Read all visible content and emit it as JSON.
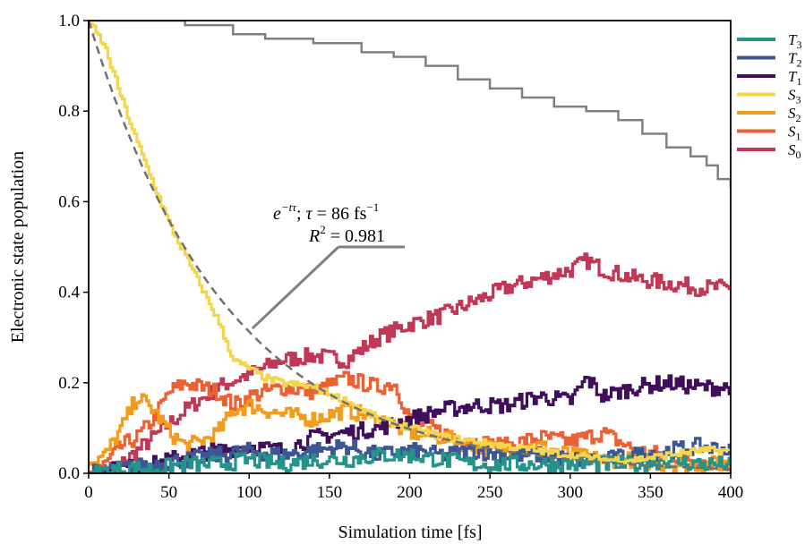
{
  "chart_data": {
    "type": "line",
    "xlabel": "Simulation time [fs]",
    "ylabel": "Electronic state population",
    "xlim": [
      0,
      400
    ],
    "ylim": [
      0,
      1.0
    ],
    "xticks": [
      "0",
      "50",
      "100",
      "150",
      "200",
      "250",
      "300",
      "350",
      "400"
    ],
    "yticks": [
      "0.0",
      "0.2",
      "0.4",
      "0.6",
      "0.8",
      "1.0"
    ],
    "grid": false,
    "legend_position": "right, outside",
    "legend": [
      {
        "label": "T",
        "sub": "3",
        "color": "#26938a"
      },
      {
        "label": "T",
        "sub": "2",
        "color": "#3b5693"
      },
      {
        "label": "T",
        "sub": "1",
        "color": "#3f0f5c"
      },
      {
        "label": "S",
        "sub": "3",
        "color": "#f3d54e"
      },
      {
        "label": "S",
        "sub": "2",
        "color": "#f39b1c"
      },
      {
        "label": "S",
        "sub": "1",
        "color": "#ea6233"
      },
      {
        "label": "S",
        "sub": "0",
        "color": "#c23656"
      }
    ],
    "annotation": {
      "line1": "e^{-tτ}; τ = 86 fs^{-1}",
      "line2": "R² = 0.981",
      "arrow_to": [
        102,
        0.32
      ]
    },
    "series": [
      {
        "name": "S0",
        "color": "#c23656",
        "x": [
          0,
          20,
          40,
          60,
          80,
          100,
          120,
          140,
          160,
          180,
          200,
          220,
          240,
          260,
          280,
          300,
          310,
          320,
          340,
          360,
          380,
          400
        ],
        "y": [
          0.0,
          0.02,
          0.08,
          0.14,
          0.19,
          0.22,
          0.25,
          0.26,
          0.25,
          0.3,
          0.33,
          0.35,
          0.38,
          0.41,
          0.43,
          0.45,
          0.47,
          0.45,
          0.43,
          0.42,
          0.41,
          0.41
        ]
      },
      {
        "name": "S1",
        "color": "#ea6233",
        "x": [
          0,
          10,
          20,
          30,
          40,
          50,
          60,
          70,
          80,
          90,
          100,
          120,
          140,
          160,
          180,
          190,
          200,
          220,
          240,
          260,
          280,
          300,
          320,
          340,
          360,
          380,
          400
        ],
        "y": [
          0.0,
          0.02,
          0.06,
          0.08,
          0.12,
          0.18,
          0.2,
          0.19,
          0.18,
          0.15,
          0.17,
          0.19,
          0.18,
          0.21,
          0.19,
          0.2,
          0.12,
          0.09,
          0.07,
          0.06,
          0.08,
          0.07,
          0.09,
          0.05,
          0.04,
          0.03,
          0.02
        ]
      },
      {
        "name": "S2",
        "color": "#f39b1c",
        "x": [
          0,
          10,
          20,
          30,
          40,
          50,
          60,
          70,
          80,
          90,
          100,
          120,
          140,
          160,
          180,
          200,
          220,
          240,
          260,
          280,
          300,
          320,
          340,
          360,
          380,
          400
        ],
        "y": [
          0.02,
          0.04,
          0.1,
          0.17,
          0.14,
          0.09,
          0.06,
          0.07,
          0.09,
          0.14,
          0.15,
          0.13,
          0.12,
          0.14,
          0.12,
          0.09,
          0.08,
          0.06,
          0.05,
          0.06,
          0.04,
          0.03,
          0.03,
          0.02,
          0.02,
          0.02
        ]
      },
      {
        "name": "S3",
        "color": "#f3d54e",
        "x": [
          0,
          10,
          20,
          30,
          40,
          50,
          60,
          70,
          80,
          90,
          100,
          110,
          120,
          140,
          160,
          180,
          200,
          220,
          240,
          260,
          280,
          300,
          320,
          340,
          360,
          380,
          400
        ],
        "y": [
          1.0,
          0.94,
          0.83,
          0.73,
          0.64,
          0.55,
          0.48,
          0.41,
          0.34,
          0.25,
          0.23,
          0.21,
          0.2,
          0.19,
          0.16,
          0.12,
          0.1,
          0.08,
          0.07,
          0.06,
          0.05,
          0.04,
          0.03,
          0.03,
          0.04,
          0.05,
          0.05
        ]
      },
      {
        "name": "T1",
        "color": "#3f0f5c",
        "x": [
          0,
          20,
          40,
          60,
          80,
          100,
          120,
          140,
          160,
          180,
          200,
          220,
          240,
          260,
          280,
          300,
          310,
          320,
          340,
          360,
          380,
          400
        ],
        "y": [
          0.0,
          0.01,
          0.02,
          0.04,
          0.05,
          0.06,
          0.05,
          0.08,
          0.09,
          0.1,
          0.12,
          0.14,
          0.15,
          0.15,
          0.17,
          0.16,
          0.21,
          0.17,
          0.19,
          0.2,
          0.19,
          0.19
        ]
      },
      {
        "name": "T2",
        "color": "#3b5693",
        "x": [
          0,
          20,
          40,
          60,
          80,
          100,
          120,
          140,
          160,
          180,
          200,
          220,
          240,
          260,
          280,
          300,
          320,
          340,
          360,
          380,
          400
        ],
        "y": [
          0.0,
          0.01,
          0.02,
          0.03,
          0.04,
          0.05,
          0.04,
          0.05,
          0.06,
          0.04,
          0.05,
          0.04,
          0.05,
          0.04,
          0.04,
          0.03,
          0.03,
          0.04,
          0.05,
          0.06,
          0.05
        ]
      },
      {
        "name": "T3",
        "color": "#26938a",
        "x": [
          0,
          20,
          40,
          60,
          80,
          100,
          120,
          140,
          160,
          180,
          200,
          220,
          240,
          260,
          280,
          300,
          320,
          340,
          360,
          380,
          400
        ],
        "y": [
          0.0,
          0.01,
          0.01,
          0.02,
          0.02,
          0.03,
          0.02,
          0.03,
          0.03,
          0.04,
          0.04,
          0.03,
          0.02,
          0.02,
          0.02,
          0.02,
          0.02,
          0.02,
          0.03,
          0.02,
          0.02
        ]
      },
      {
        "name": "Total",
        "color": "#808080",
        "x": [
          0,
          60,
          90,
          110,
          140,
          170,
          190,
          210,
          230,
          250,
          270,
          290,
          310,
          330,
          345,
          360,
          375,
          385,
          392,
          400
        ],
        "y": [
          1.0,
          0.99,
          0.97,
          0.96,
          0.95,
          0.93,
          0.92,
          0.9,
          0.87,
          0.85,
          0.83,
          0.81,
          0.8,
          0.78,
          0.75,
          0.72,
          0.7,
          0.68,
          0.65,
          0.63
        ]
      },
      {
        "name": "Exponential fit",
        "color": "#707070",
        "dashed": true,
        "tau": 86
      }
    ]
  }
}
